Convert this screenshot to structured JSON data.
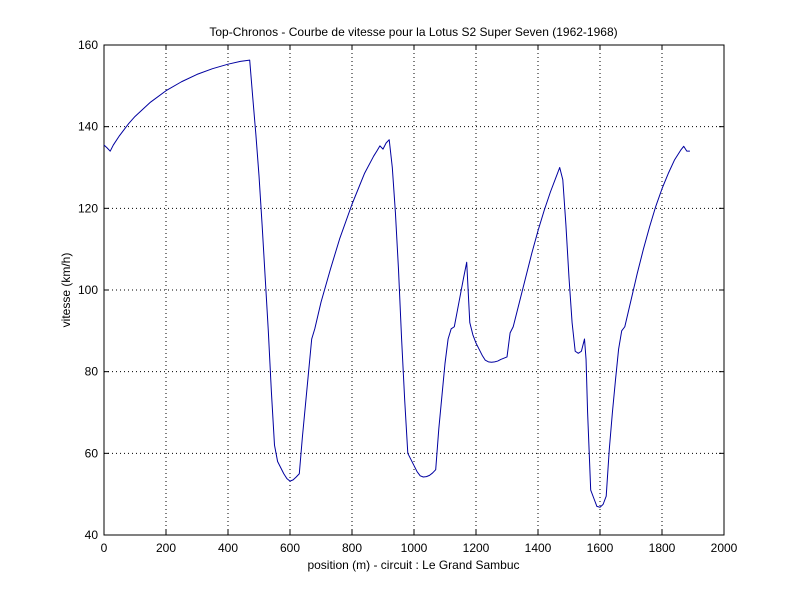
{
  "chart_data": {
    "type": "line",
    "title": "Top-Chronos - Courbe de vitesse pour la Lotus S2 Super Seven (1962-1968)",
    "xlabel": "position (m) - circuit : Le Grand Sambuc",
    "ylabel": "vitesse (km/h)",
    "xlim": [
      0,
      2000
    ],
    "ylim": [
      40,
      160
    ],
    "x_ticks": [
      0,
      200,
      400,
      600,
      800,
      1000,
      1200,
      1400,
      1600,
      1800,
      2000
    ],
    "y_ticks": [
      40,
      60,
      80,
      100,
      120,
      140,
      160
    ],
    "grid": true,
    "line_color": "#0000a0",
    "series": [
      {
        "x": [
          0,
          10,
          20,
          30,
          50,
          80,
          100,
          150,
          200,
          250,
          300,
          350,
          400,
          440,
          470,
          480,
          490,
          500,
          510,
          520,
          530,
          540,
          550,
          560,
          570,
          580,
          590,
          600,
          610,
          620,
          630,
          640,
          650,
          660,
          670,
          680,
          700,
          730,
          760,
          800,
          840,
          870,
          880,
          890,
          900,
          910,
          920,
          930,
          940,
          950,
          960,
          970,
          980,
          990,
          1000,
          1010,
          1020,
          1030,
          1040,
          1050,
          1060,
          1070,
          1080,
          1090,
          1100,
          1110,
          1120,
          1130,
          1140,
          1150,
          1160,
          1170,
          1180,
          1190,
          1200,
          1210,
          1220,
          1230,
          1240,
          1250,
          1260,
          1270,
          1280,
          1290,
          1300,
          1310,
          1320,
          1340,
          1360,
          1380,
          1400,
          1420,
          1440,
          1460,
          1470,
          1480,
          1490,
          1500,
          1510,
          1520,
          1530,
          1540,
          1550,
          1555,
          1560,
          1570,
          1580,
          1590,
          1600,
          1610,
          1620,
          1630,
          1640,
          1650,
          1660,
          1670,
          1680,
          1700,
          1720,
          1740,
          1760,
          1780,
          1800,
          1820,
          1840,
          1860,
          1870,
          1880,
          1890
        ],
        "y": [
          135.5,
          134.8,
          134.0,
          135.5,
          137.8,
          140.8,
          142.5,
          146.0,
          148.8,
          151.0,
          152.8,
          154.2,
          155.3,
          156.0,
          156.3,
          147.0,
          138.0,
          128.0,
          116.0,
          103.0,
          90.0,
          75.0,
          62.0,
          58.0,
          56.5,
          55.0,
          53.8,
          53.2,
          53.5,
          54.2,
          55.0,
          64.0,
          72.0,
          80.0,
          88.0,
          90.5,
          97.0,
          105.0,
          112.5,
          121.0,
          128.5,
          132.8,
          134.0,
          135.3,
          134.5,
          136.0,
          136.8,
          130.0,
          119.0,
          105.0,
          88.0,
          73.0,
          60.0,
          58.5,
          57.0,
          55.5,
          54.5,
          54.2,
          54.3,
          54.6,
          55.2,
          56.0,
          66.0,
          74.0,
          82.0,
          88.0,
          90.5,
          91.0,
          95.0,
          99.0,
          103.0,
          106.8,
          92.0,
          89.0,
          87.0,
          85.5,
          84.0,
          82.8,
          82.4,
          82.3,
          82.4,
          82.6,
          83.0,
          83.3,
          83.6,
          89.5,
          91.0,
          97.0,
          103.0,
          109.0,
          114.5,
          119.5,
          124.0,
          128.0,
          130.0,
          127.0,
          116.0,
          103.0,
          92.0,
          85.0,
          84.5,
          85.0,
          88.0,
          83.0,
          70.0,
          51.0,
          49.0,
          47.0,
          46.8,
          47.5,
          49.5,
          61.0,
          70.0,
          78.0,
          85.5,
          90.0,
          91.0,
          97.5,
          104.0,
          110.0,
          115.5,
          120.5,
          124.8,
          128.5,
          131.8,
          134.2,
          135.2,
          134.0,
          134.0
        ]
      }
    ]
  }
}
